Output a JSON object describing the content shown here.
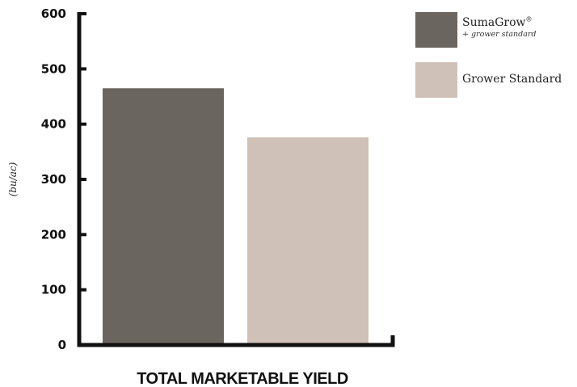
{
  "chart_data": {
    "type": "bar",
    "categories": [
      "TOTAL MARKETABLE YIELD"
    ],
    "series": [
      {
        "name": "SumaGrow® + grower standard",
        "values": [
          465
        ],
        "color": "#6b6560"
      },
      {
        "name": "Grower Standard",
        "values": [
          376
        ],
        "color": "#cfc1b8"
      }
    ],
    "ylabel": "(bu/ac)",
    "xlabel": "",
    "ylim": [
      0,
      600
    ],
    "yticks": [
      0,
      100,
      200,
      300,
      400,
      500,
      600
    ],
    "grid": false,
    "legend_position": "top-right"
  },
  "legend": {
    "items": [
      {
        "label_main": "SumaGrow",
        "label_mark": "®",
        "label_sub": "+ grower standard",
        "color": "#6b6560"
      },
      {
        "label_main": "Grower Standard",
        "color": "#cfc1b8"
      }
    ]
  }
}
